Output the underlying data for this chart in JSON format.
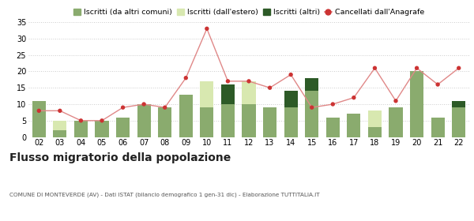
{
  "years": [
    "02",
    "03",
    "04",
    "05",
    "06",
    "07",
    "08",
    "09",
    "10",
    "11",
    "12",
    "13",
    "14",
    "15",
    "16",
    "17",
    "18",
    "19",
    "20",
    "21",
    "22"
  ],
  "iscritti_comuni": [
    11,
    2,
    5,
    5,
    6,
    10,
    9,
    13,
    9,
    10,
    10,
    9,
    9,
    14,
    6,
    7,
    3,
    9,
    20,
    6,
    9
  ],
  "iscritti_estero": [
    0,
    3,
    0,
    0,
    0,
    0,
    0,
    0,
    8,
    0,
    7,
    0,
    0,
    0,
    0,
    0,
    5,
    0,
    0,
    0,
    0
  ],
  "iscritti_altri": [
    0,
    0,
    0,
    0,
    0,
    0,
    0,
    0,
    0,
    6,
    0,
    0,
    5,
    4,
    0,
    0,
    0,
    0,
    0,
    0,
    2
  ],
  "cancellati": [
    8,
    8,
    5,
    5,
    9,
    10,
    9,
    18,
    33,
    17,
    17,
    15,
    19,
    9,
    10,
    12,
    21,
    11,
    21,
    16,
    21
  ],
  "color_comuni": "#8aab6e",
  "color_estero": "#d8e8b0",
  "color_altri": "#2d5a27",
  "color_cancellati": "#cc3333",
  "color_cancellati_line": "#e08888",
  "ylim": [
    0,
    35
  ],
  "yticks": [
    0,
    5,
    10,
    15,
    20,
    25,
    30,
    35
  ],
  "title": "Flusso migratorio della popolazione",
  "subtitle": "COMUNE DI MONTEVERDE (AV) - Dati ISTAT (bilancio demografico 1 gen-31 dic) - Elaborazione TUTTITALIA.IT",
  "legend_labels": [
    "Iscritti (da altri comuni)",
    "Iscritti (dall'estero)",
    "Iscritti (altri)",
    "Cancellati dall'Anagrafe"
  ],
  "background_color": "#ffffff",
  "grid_color": "#cccccc"
}
